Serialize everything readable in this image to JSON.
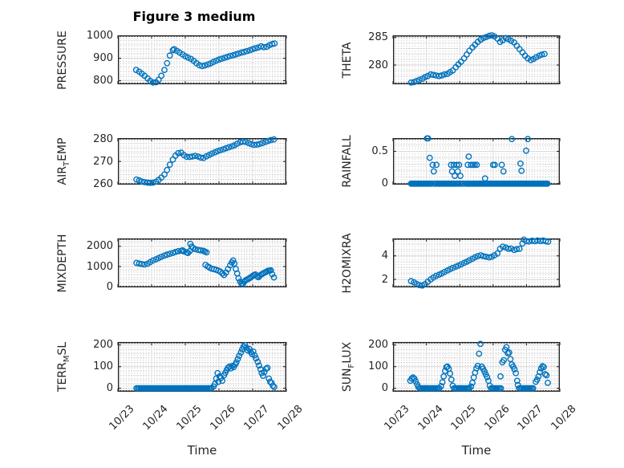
{
  "figure": {
    "title": "Figure 3 medium",
    "xlabel": "Time",
    "x_tick_labels": [
      "10/23",
      "10/24",
      "10/25",
      "10/26",
      "10/27",
      "10/28"
    ],
    "accent_color": "#0072BD",
    "axis_color": "#262626",
    "major_grid_color": "#d9d9d9",
    "minor_grid_color": "#b4b4b4"
  },
  "chart_data": [
    {
      "id": "pressure",
      "type": "scatter",
      "marker": "o",
      "row": 0,
      "col": 0,
      "ylabel_pre": "PRESSURE",
      "ylabel_sub": "",
      "ylabel_post": "",
      "xlim": [
        0,
        5
      ],
      "ylim": [
        784,
        1002
      ],
      "yticks": [
        800,
        900,
        1000
      ],
      "ytick_labels": [
        "800",
        "900",
        "1000"
      ],
      "y_minor_step": 20,
      "x": [
        0.54,
        0.63,
        0.71,
        0.79,
        0.88,
        0.96,
        1.04,
        1.13,
        1.21,
        1.29,
        1.38,
        1.46,
        1.54,
        1.63,
        1.67,
        1.75,
        1.83,
        1.92,
        2.0,
        2.08,
        2.17,
        2.25,
        2.33,
        2.42,
        2.5,
        2.58,
        2.67,
        2.75,
        2.83,
        2.92,
        3.0,
        3.08,
        3.17,
        3.25,
        3.33,
        3.42,
        3.5,
        3.58,
        3.67,
        3.75,
        3.83,
        3.92,
        4.0,
        4.08,
        4.17,
        4.25,
        4.33,
        4.42,
        4.5,
        4.58,
        4.65
      ],
      "y": [
        848,
        840,
        832,
        822,
        810,
        799,
        792,
        793,
        804,
        822,
        848,
        878,
        912,
        936,
        940,
        933,
        925,
        917,
        909,
        903,
        897,
        888,
        878,
        869,
        865,
        868,
        872,
        877,
        883,
        889,
        894,
        898,
        902,
        906,
        910,
        913,
        917,
        921,
        925,
        928,
        932,
        936,
        940,
        944,
        948,
        953,
        949,
        951,
        958,
        963,
        966
      ]
    },
    {
      "id": "theta",
      "type": "scatter",
      "marker": "o",
      "row": 0,
      "col": 1,
      "ylabel_pre": "THETA",
      "ylabel_sub": "",
      "ylabel_post": "",
      "xlim": [
        0,
        5
      ],
      "ylim": [
        276.5,
        285.4
      ],
      "yticks": [
        280,
        285
      ],
      "ytick_labels": [
        "280",
        "285"
      ],
      "y_minor_step": 1,
      "x": [
        0.54,
        0.63,
        0.71,
        0.79,
        0.88,
        0.96,
        1.04,
        1.13,
        1.21,
        1.29,
        1.38,
        1.46,
        1.54,
        1.63,
        1.71,
        1.79,
        1.88,
        1.96,
        2.04,
        2.13,
        2.21,
        2.29,
        2.38,
        2.46,
        2.54,
        2.63,
        2.71,
        2.79,
        2.88,
        2.96,
        3.04,
        3.13,
        3.21,
        3.29,
        3.38,
        3.46,
        3.54,
        3.63,
        3.71,
        3.79,
        3.88,
        3.96,
        4.04,
        4.13,
        4.21,
        4.29,
        4.38,
        4.46,
        4.54
      ],
      "y": [
        276.8,
        276.9,
        277.1,
        277.3,
        277.5,
        277.8,
        278.0,
        278.3,
        278.2,
        278.1,
        278.0,
        278.1,
        278.3,
        278.4,
        278.7,
        279.0,
        279.6,
        280.1,
        280.6,
        281.2,
        281.9,
        282.6,
        283.2,
        283.7,
        284.2,
        284.6,
        284.9,
        285.1,
        285.3,
        285.4,
        285.2,
        284.8,
        284.2,
        284.5,
        284.9,
        284.7,
        284.4,
        284.1,
        283.5,
        282.9,
        282.3,
        281.7,
        281.2,
        280.9,
        281.1,
        281.4,
        281.7,
        281.9,
        282.0
      ]
    },
    {
      "id": "air-temp",
      "type": "scatter",
      "marker": "o",
      "row": 1,
      "col": 0,
      "ylabel_pre": "AIR",
      "ylabel_sub": "T",
      "ylabel_post": "EMP",
      "xlim": [
        0,
        5
      ],
      "ylim": [
        259.7,
        280.4
      ],
      "yticks": [
        260,
        270,
        280
      ],
      "ytick_labels": [
        "260",
        "270",
        "280"
      ],
      "y_minor_step": 2,
      "x": [
        0.55,
        0.63,
        0.71,
        0.79,
        0.88,
        0.96,
        1.04,
        1.13,
        1.21,
        1.29,
        1.38,
        1.46,
        1.54,
        1.63,
        1.71,
        1.79,
        1.88,
        1.96,
        2.04,
        2.13,
        2.21,
        2.29,
        2.38,
        2.46,
        2.54,
        2.63,
        2.71,
        2.79,
        2.88,
        2.96,
        3.04,
        3.13,
        3.21,
        3.29,
        3.38,
        3.46,
        3.54,
        3.63,
        3.71,
        3.79,
        3.88,
        3.96,
        4.04,
        4.13,
        4.21,
        4.29,
        4.38,
        4.46,
        4.54,
        4.63
      ],
      "y": [
        262.0,
        261.6,
        261.1,
        260.8,
        260.6,
        260.5,
        260.6,
        261.0,
        261.8,
        262.8,
        264.2,
        266.2,
        268.6,
        270.8,
        272.6,
        273.7,
        273.9,
        272.8,
        272.1,
        272.0,
        272.2,
        272.5,
        272.2,
        271.7,
        271.6,
        272.3,
        272.9,
        273.5,
        274.1,
        274.6,
        275.0,
        275.4,
        275.9,
        276.3,
        276.7,
        277.2,
        277.9,
        278.5,
        278.8,
        278.7,
        278.2,
        277.7,
        277.4,
        277.5,
        277.8,
        278.2,
        278.7,
        279.1,
        279.5,
        279.8
      ]
    },
    {
      "id": "rainfall",
      "type": "scatter",
      "marker": "o",
      "row": 1,
      "col": 1,
      "ylabel_pre": "RAINFALL",
      "ylabel_sub": "",
      "ylabel_post": "",
      "xlim": [
        0,
        5
      ],
      "ylim": [
        -0.015,
        0.705
      ],
      "yticks": [
        0,
        0.5
      ],
      "ytick_labels": [
        "0",
        "0.5"
      ],
      "y_minor_step": 0.1,
      "x": [
        1.02,
        1.05,
        1.1,
        1.19,
        1.22,
        1.3,
        1.74,
        1.77,
        1.82,
        1.85,
        1.91,
        1.94,
        1.98,
        2.02,
        2.24,
        2.27,
        2.34,
        2.4,
        2.45,
        2.51,
        2.76,
        3.0,
        3.05,
        3.26,
        3.31,
        3.56,
        3.82,
        3.85,
        3.99,
        4.04
      ],
      "y": [
        0.7,
        0.7,
        0.4,
        0.29,
        0.19,
        0.29,
        0.29,
        0.19,
        0.29,
        0.12,
        0.29,
        0.19,
        0.29,
        0.12,
        0.29,
        0.42,
        0.29,
        0.29,
        0.29,
        0.29,
        0.08,
        0.29,
        0.29,
        0.29,
        0.19,
        0.69,
        0.31,
        0.2,
        0.51,
        0.69
      ],
      "zero_runs": [
        [
          0.54,
          1.16,
          0.035
        ],
        [
          1.22,
          1.32,
          0.05
        ],
        [
          1.36,
          1.86,
          0.035
        ],
        [
          1.9,
          2.14,
          0.05
        ],
        [
          2.18,
          4.64,
          0.035
        ]
      ]
    },
    {
      "id": "mixdepth",
      "type": "scatter",
      "marker": "o",
      "row": 2,
      "col": 0,
      "ylabel_pre": "MIXDEPTH",
      "ylabel_sub": "",
      "ylabel_post": "",
      "xlim": [
        0,
        5
      ],
      "ylim": [
        -30,
        2390
      ],
      "yticks": [
        0,
        1000,
        2000
      ],
      "ytick_labels": [
        "0",
        "1000",
        "2000"
      ],
      "y_minor_step": 200,
      "x": [
        0.55,
        0.63,
        0.71,
        0.79,
        0.88,
        0.96,
        1.04,
        1.13,
        1.21,
        1.29,
        1.38,
        1.46,
        1.54,
        1.63,
        1.71,
        1.79,
        1.88,
        1.92,
        1.96,
        2.04,
        2.08,
        2.13,
        2.15,
        2.19,
        2.23,
        2.29,
        2.38,
        2.46,
        2.54,
        2.58,
        2.6,
        2.63,
        2.67,
        2.72,
        2.78,
        2.85,
        2.92,
        2.98,
        3.04,
        3.1,
        3.15,
        3.21,
        3.27,
        3.33,
        3.38,
        3.42,
        3.46,
        3.5,
        3.54,
        3.58,
        3.63,
        3.67,
        3.71,
        3.75,
        3.79,
        3.83,
        3.88,
        3.92,
        3.96,
        4.0,
        4.04,
        4.08,
        4.13,
        4.17,
        4.21,
        4.25,
        4.29,
        4.33,
        4.38,
        4.42,
        4.46,
        4.5,
        4.54,
        4.58,
        4.63
      ],
      "y": [
        1180,
        1150,
        1120,
        1100,
        1140,
        1220,
        1300,
        1360,
        1420,
        1480,
        1540,
        1590,
        1630,
        1670,
        1720,
        1760,
        1780,
        1800,
        1750,
        1700,
        1670,
        1760,
        2120,
        1980,
        1920,
        1860,
        1820,
        1800,
        1780,
        1740,
        1080,
        1700,
        1000,
        950,
        900,
        870,
        840,
        800,
        750,
        660,
        580,
        700,
        880,
        1060,
        1200,
        1300,
        1150,
        880,
        660,
        420,
        250,
        160,
        140,
        250,
        320,
        360,
        400,
        440,
        480,
        540,
        580,
        610,
        520,
        470,
        540,
        600,
        640,
        680,
        720,
        760,
        790,
        800,
        810,
        620,
        460
      ]
    },
    {
      "id": "h2omixra",
      "type": "scatter",
      "marker": "o",
      "row": 2,
      "col": 1,
      "ylabel_pre": "H2OMIXRA",
      "ylabel_sub": "",
      "ylabel_post": "",
      "xlim": [
        0,
        5
      ],
      "ylim": [
        1.32,
        5.48
      ],
      "yticks": [
        2,
        4
      ],
      "ytick_labels": [
        "2",
        "4"
      ],
      "y_minor_step": 0.5,
      "x": [
        0.54,
        0.63,
        0.71,
        0.79,
        0.88,
        0.96,
        1.04,
        1.13,
        1.21,
        1.29,
        1.38,
        1.46,
        1.54,
        1.63,
        1.71,
        1.79,
        1.88,
        1.96,
        2.04,
        2.13,
        2.21,
        2.29,
        2.38,
        2.46,
        2.54,
        2.63,
        2.71,
        2.79,
        2.88,
        2.96,
        3.04,
        3.13,
        3.21,
        3.29,
        3.38,
        3.46,
        3.54,
        3.63,
        3.71,
        3.79,
        3.88,
        3.92,
        4.0,
        4.08,
        4.17,
        4.25,
        4.33,
        4.42,
        4.5,
        4.58,
        4.65
      ],
      "y": [
        1.85,
        1.75,
        1.62,
        1.52,
        1.48,
        1.6,
        1.8,
        2.0,
        2.15,
        2.3,
        2.4,
        2.5,
        2.62,
        2.75,
        2.87,
        2.97,
        3.07,
        3.17,
        3.27,
        3.4,
        3.5,
        3.62,
        3.75,
        3.88,
        3.98,
        4.05,
        3.97,
        3.92,
        3.87,
        3.92,
        4.05,
        4.2,
        4.6,
        4.78,
        4.7,
        4.6,
        4.62,
        4.5,
        4.57,
        4.6,
        5.05,
        5.38,
        5.25,
        5.22,
        5.28,
        5.24,
        5.3,
        5.26,
        5.3,
        5.24,
        5.2
      ]
    },
    {
      "id": "terr-msl",
      "type": "scatter",
      "marker": "o",
      "row": 3,
      "col": 0,
      "ylabel_pre": "TERR",
      "ylabel_sub": "M",
      "ylabel_post": "SL",
      "xlim": [
        0,
        5
      ],
      "ylim": [
        -16,
        214
      ],
      "yticks": [
        0,
        100,
        200
      ],
      "ytick_labels": [
        "0",
        "100",
        "200"
      ],
      "y_minor_step": 20,
      "x": [
        2.84,
        2.88,
        2.92,
        2.96,
        2.98,
        3.02,
        3.06,
        3.1,
        3.15,
        3.19,
        3.23,
        3.27,
        3.31,
        3.35,
        3.4,
        3.44,
        3.48,
        3.52,
        3.56,
        3.6,
        3.65,
        3.69,
        3.73,
        3.77,
        3.81,
        3.85,
        3.9,
        3.94,
        3.98,
        4.02,
        4.06,
        4.1,
        4.15,
        4.19,
        4.23,
        4.27,
        4.31,
        4.35,
        4.4,
        4.44,
        4.48,
        4.52,
        4.56,
        4.6,
        4.64
      ],
      "y": [
        8,
        20,
        45,
        70,
        30,
        55,
        48,
        35,
        60,
        72,
        85,
        95,
        100,
        92,
        103,
        98,
        110,
        120,
        135,
        150,
        165,
        180,
        192,
        200,
        188,
        175,
        182,
        168,
        158,
        170,
        152,
        138,
        122,
        105,
        88,
        70,
        58,
        75,
        90,
        95,
        45,
        30,
        25,
        12,
        6
      ],
      "zero_runs": [
        [
          0.55,
          2.8,
          0.042
        ]
      ]
    },
    {
      "id": "sun-flux",
      "type": "scatter",
      "marker": "o",
      "row": 3,
      "col": 1,
      "ylabel_pre": "SUN",
      "ylabel_sub": "F",
      "ylabel_post": "LUX",
      "xlim": [
        0,
        5
      ],
      "ylim": [
        -16,
        214
      ],
      "yticks": [
        0,
        100,
        200
      ],
      "ytick_labels": [
        "0",
        "100",
        "200"
      ],
      "y_minor_step": 20,
      "x": [
        0.52,
        0.56,
        0.6,
        0.64,
        0.68,
        0.72,
        0.76,
        1.44,
        1.48,
        1.52,
        1.56,
        1.6,
        1.63,
        1.67,
        1.71,
        1.75,
        1.79,
        2.34,
        2.38,
        2.42,
        2.46,
        2.5,
        2.54,
        2.58,
        2.62,
        2.66,
        2.7,
        2.74,
        2.78,
        2.82,
        2.86,
        2.9,
        3.22,
        3.28,
        3.32,
        3.36,
        3.4,
        3.44,
        3.48,
        3.52,
        3.56,
        3.6,
        3.64,
        3.68,
        3.72,
        3.74,
        4.28,
        4.32,
        4.36,
        4.4,
        4.44,
        4.48,
        4.52,
        4.56,
        4.6,
        4.64
      ],
      "y": [
        35,
        45,
        50,
        45,
        32,
        18,
        6,
        10,
        28,
        55,
        80,
        98,
        100,
        90,
        68,
        40,
        12,
        8,
        25,
        50,
        72,
        92,
        103,
        160,
        205,
        100,
        90,
        78,
        64,
        52,
        35,
        12,
        55,
        120,
        130,
        178,
        190,
        162,
        165,
        135,
        110,
        100,
        88,
        70,
        35,
        15,
        30,
        40,
        55,
        75,
        92,
        102,
        98,
        65,
        60,
        25
      ],
      "zero_runs": [
        [
          0.8,
          1.4,
          0.042
        ],
        [
          1.83,
          2.3,
          0.042
        ],
        [
          2.94,
          3.24,
          0.042
        ],
        [
          3.78,
          4.24,
          0.042
        ]
      ]
    }
  ]
}
